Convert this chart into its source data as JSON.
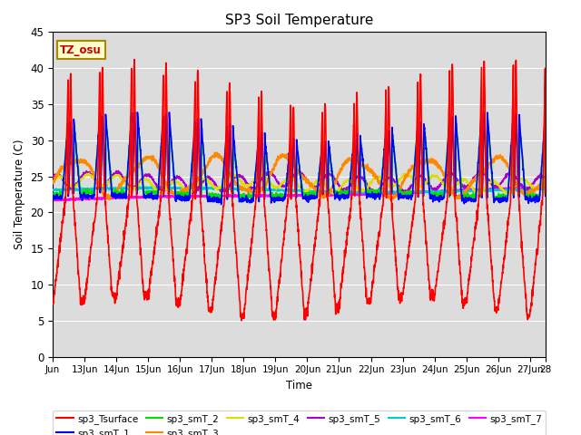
{
  "title": "SP3 Soil Temperature",
  "ylabel": "Soil Temperature (C)",
  "xlabel": "Time",
  "annotation": "TZ_osu",
  "ylim": [
    0,
    45
  ],
  "background_color": "#dcdcdc",
  "series_colors": {
    "sp3_Tsurface": "#ff0000",
    "sp3_smT_1": "#0000ff",
    "sp3_smT_2": "#00dd00",
    "sp3_smT_3": "#ff8800",
    "sp3_smT_4": "#dddd00",
    "sp3_smT_5": "#aa00cc",
    "sp3_smT_6": "#00cccc",
    "sp3_smT_7": "#ff00ff"
  },
  "x_tick_labels": [
    "Jun",
    "13Jun",
    "14Jun",
    "15Jun",
    "16Jun",
    "17Jun",
    "18Jun",
    "19Jun",
    "20Jun",
    "21Jun",
    "22Jun",
    "23Jun",
    "24Jun",
    "25Jun",
    "26Jun",
    "27Jun",
    "28"
  ],
  "x_tick_positions": [
    0,
    1,
    2,
    3,
    4,
    5,
    6,
    7,
    8,
    9,
    10,
    11,
    12,
    13,
    14,
    15,
    15.5
  ],
  "y_ticks": [
    0,
    5,
    10,
    15,
    20,
    25,
    30,
    35,
    40,
    45
  ]
}
